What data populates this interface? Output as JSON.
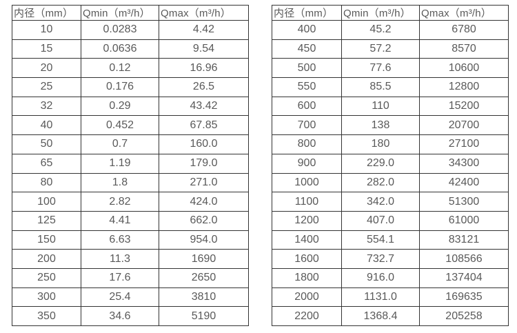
{
  "colors": {
    "background": "#ffffff",
    "border": "#333333",
    "text": "#595959"
  },
  "chart_data": [
    {
      "type": "table",
      "title": "",
      "columns": [
        "内径（mm）",
        "Qmin（m³/h）",
        "Qmax（m³/h）"
      ],
      "rows": [
        [
          "10",
          "0.0283",
          "4.42"
        ],
        [
          "15",
          "0.0636",
          "9.54"
        ],
        [
          "20",
          "0.12",
          "16.96"
        ],
        [
          "25",
          "0.176",
          "26.5"
        ],
        [
          "32",
          "0.29",
          "43.42"
        ],
        [
          "40",
          "0.452",
          "67.85"
        ],
        [
          "50",
          "0.7",
          "160.0"
        ],
        [
          "65",
          "1.19",
          "179.0"
        ],
        [
          "80",
          "1.8",
          "271.0"
        ],
        [
          "100",
          "2.82",
          "424.0"
        ],
        [
          "125",
          "4.41",
          "662.0"
        ],
        [
          "150",
          "6.63",
          "954.0"
        ],
        [
          "200",
          "11.3",
          "1690"
        ],
        [
          "250",
          "17.6",
          "2650"
        ],
        [
          "300",
          "25.4",
          "3810"
        ],
        [
          "350",
          "34.6",
          "5190"
        ]
      ]
    },
    {
      "type": "table",
      "title": "",
      "columns": [
        "内径（mm）",
        "Qmin（m³/h）",
        "Qmax（m³/h）"
      ],
      "rows": [
        [
          "400",
          "45.2",
          "6780"
        ],
        [
          "450",
          "57.2",
          "8570"
        ],
        [
          "500",
          "77.6",
          "10600"
        ],
        [
          "550",
          "85.5",
          "12800"
        ],
        [
          "600",
          "110",
          "15200"
        ],
        [
          "700",
          "138",
          "20700"
        ],
        [
          "800",
          "180",
          "27100"
        ],
        [
          "900",
          "229.0",
          "34300"
        ],
        [
          "1000",
          "282.0",
          "42400"
        ],
        [
          "1100",
          "342.0",
          "51300"
        ],
        [
          "1200",
          "407.0",
          "61000"
        ],
        [
          "1400",
          "554.1",
          "83121"
        ],
        [
          "1600",
          "732.7",
          "108566"
        ],
        [
          "1800",
          "916.0",
          "137404"
        ],
        [
          "2000",
          "1131.0",
          "169635"
        ],
        [
          "2200",
          "1368.4",
          "205258"
        ]
      ]
    }
  ]
}
